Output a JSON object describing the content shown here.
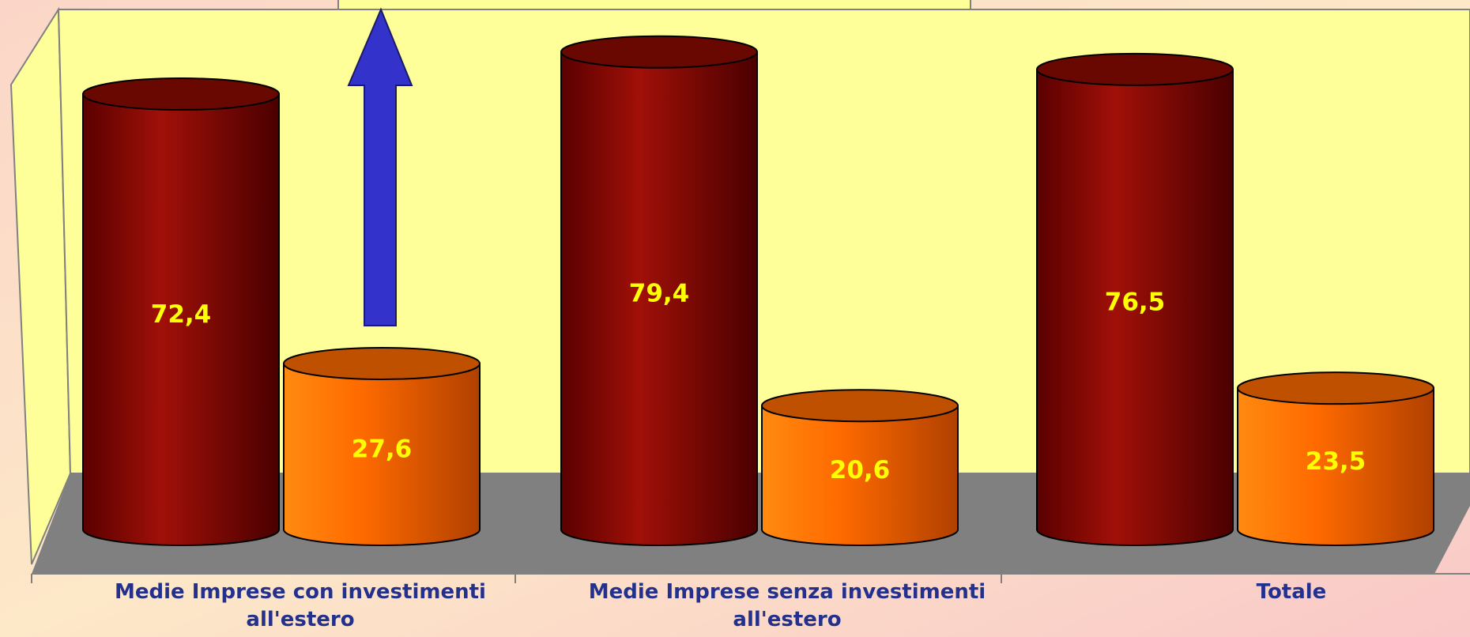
{
  "chart_data": {
    "type": "bar",
    "categories": [
      "Medie Imprese con investimenti all'estero",
      "Medie Imprese senza investimenti all'estero",
      "Totale"
    ],
    "series": [
      {
        "color": "#8b0a00",
        "values": [
          72.4,
          79.4,
          76.5
        ],
        "value_labels": [
          "72,4",
          "79,4",
          "76,5"
        ]
      },
      {
        "color": "#ff6a00",
        "values": [
          27.6,
          20.6,
          23.5
        ],
        "value_labels": [
          "27,6",
          "20,6",
          "23,5"
        ]
      }
    ]
  }
}
